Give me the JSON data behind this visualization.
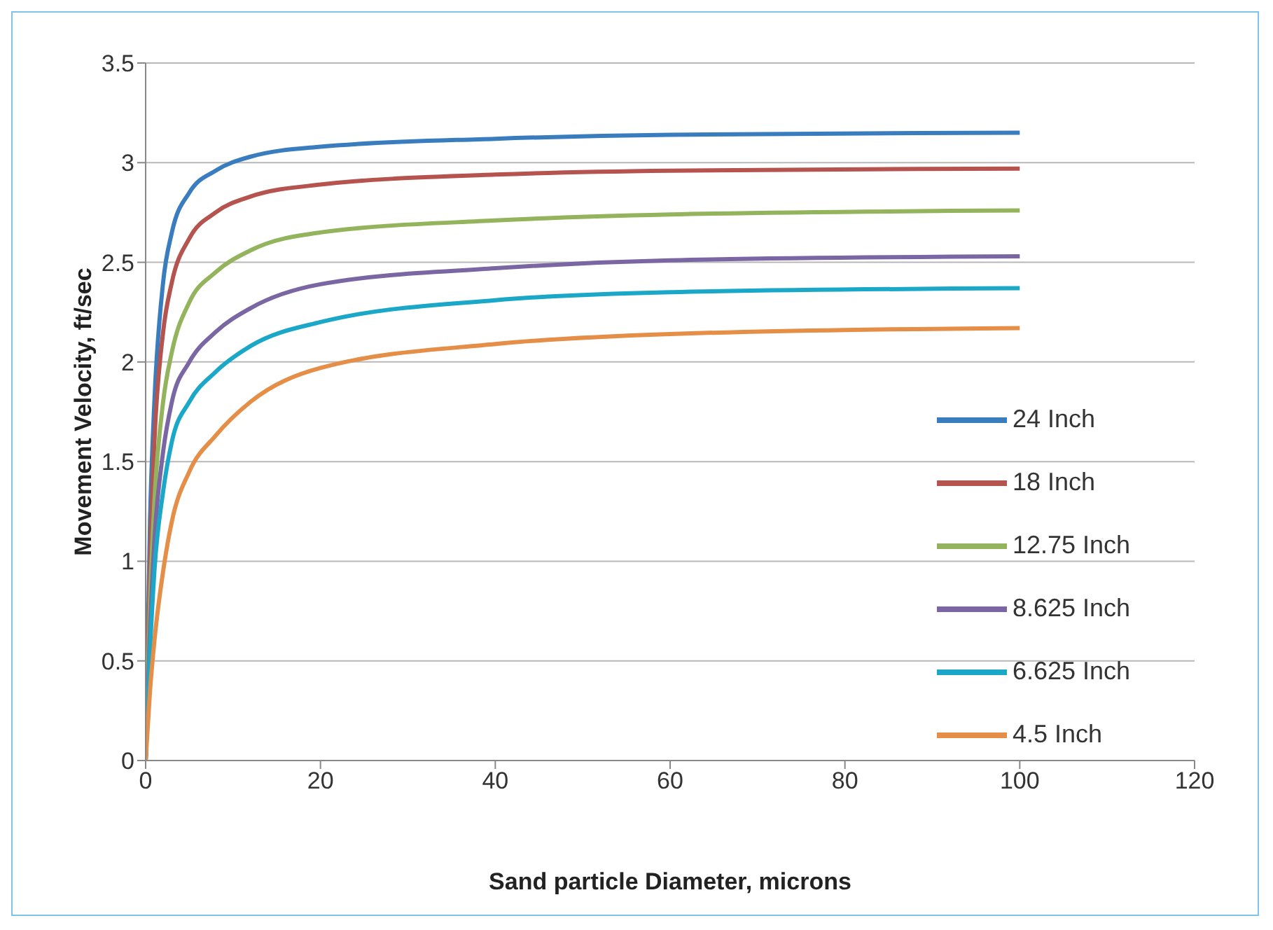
{
  "chart_data": {
    "type": "line",
    "xlabel": "Sand particle Diameter, microns",
    "ylabel": "Movement Velocity, ft/sec",
    "x": [
      0,
      0.5,
      1,
      2,
      3,
      5,
      8,
      12,
      20,
      40,
      60,
      100
    ],
    "series": [
      {
        "name": "24 Inch",
        "color": "#3a7dbf",
        "values": [
          0,
          1.2,
          1.8,
          2.4,
          2.65,
          2.85,
          2.96,
          3.03,
          3.08,
          3.12,
          3.14,
          3.15
        ]
      },
      {
        "name": "18 Inch",
        "color": "#b5534f",
        "values": [
          0,
          1.0,
          1.6,
          2.15,
          2.4,
          2.62,
          2.75,
          2.83,
          2.89,
          2.94,
          2.96,
          2.97
        ]
      },
      {
        "name": "12.75 Inch",
        "color": "#93b45c",
        "values": [
          0,
          0.8,
          1.3,
          1.8,
          2.05,
          2.3,
          2.45,
          2.56,
          2.65,
          2.71,
          2.74,
          2.76
        ]
      },
      {
        "name": "8.625 Inch",
        "color": "#7a66a3",
        "values": [
          0,
          0.65,
          1.1,
          1.55,
          1.8,
          2.0,
          2.15,
          2.27,
          2.39,
          2.47,
          2.51,
          2.53
        ]
      },
      {
        "name": "6.625 Inch",
        "color": "#1ba7c8",
        "values": [
          0,
          0.55,
          0.95,
          1.35,
          1.6,
          1.8,
          1.95,
          2.08,
          2.2,
          2.31,
          2.35,
          2.37
        ]
      },
      {
        "name": "4.5 Inch",
        "color": "#e58e48",
        "values": [
          0,
          0.35,
          0.6,
          0.95,
          1.2,
          1.45,
          1.63,
          1.8,
          1.97,
          2.09,
          2.14,
          2.17
        ]
      }
    ],
    "xlim": [
      0,
      120
    ],
    "xticks": [
      0,
      20,
      40,
      60,
      80,
      100,
      120
    ],
    "ylim": [
      0,
      3.5
    ],
    "yticks": [
      0,
      0.5,
      1,
      1.5,
      2,
      2.5,
      3,
      3.5
    ],
    "grid": "y",
    "legend": "right",
    "marker": "none",
    "line_style": "solid"
  }
}
